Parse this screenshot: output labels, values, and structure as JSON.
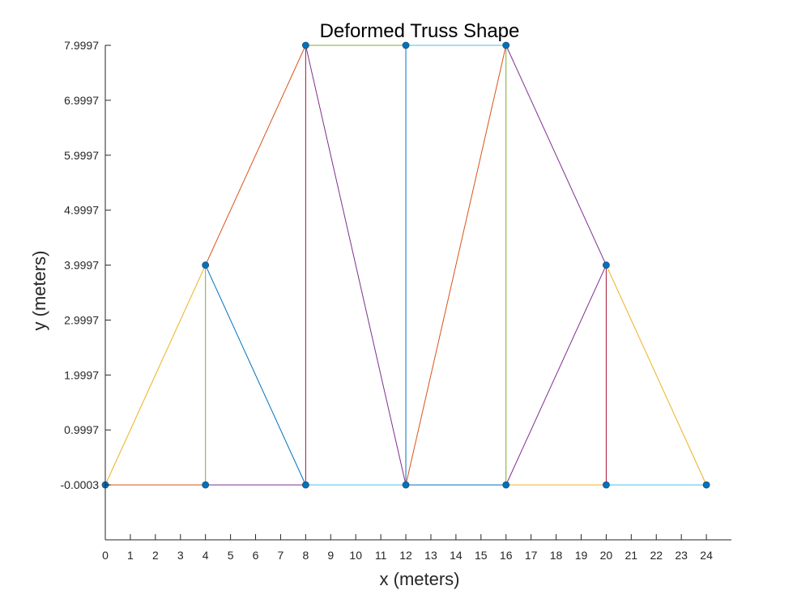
{
  "chart_data": {
    "type": "line",
    "title": "Deformed Truss Shape",
    "xlabel": "x (meters)",
    "ylabel": "y (meters)",
    "xlim": [
      0,
      25
    ],
    "ylim": [
      -1,
      7.9997
    ],
    "xticks": [
      0,
      1,
      2,
      3,
      4,
      5,
      6,
      7,
      8,
      9,
      10,
      11,
      12,
      13,
      14,
      15,
      16,
      17,
      18,
      19,
      20,
      21,
      22,
      23,
      24
    ],
    "xtick_labels": [
      "0",
      "1",
      "2",
      "3",
      "4",
      "5",
      "6",
      "7",
      "8",
      "9",
      "10",
      "11",
      "12",
      "13",
      "14",
      "15",
      "16",
      "17",
      "18",
      "19",
      "20",
      "21",
      "22",
      "23",
      "24"
    ],
    "yticks": [
      -0.0003,
      0.9997,
      1.9997,
      2.9997,
      3.9997,
      4.9997,
      5.9997,
      6.9997,
      7.9997
    ],
    "ytick_labels": [
      "-0.0003",
      "0.9997",
      "1.9997",
      "2.9997",
      "3.9997",
      "4.9997",
      "5.9997",
      "6.9997",
      "7.9997"
    ],
    "grid": false,
    "legend": "none",
    "node_color": "#0072BD",
    "nodes": [
      {
        "x": 0,
        "y": -0.0003
      },
      {
        "x": 4,
        "y": -0.0003
      },
      {
        "x": 8,
        "y": -0.0003
      },
      {
        "x": 12,
        "y": -0.0003
      },
      {
        "x": 16,
        "y": -0.0003
      },
      {
        "x": 20,
        "y": -0.0003
      },
      {
        "x": 24,
        "y": -0.0003
      },
      {
        "x": 4,
        "y": 3.9997
      },
      {
        "x": 8,
        "y": 7.9997
      },
      {
        "x": 12,
        "y": 7.9997
      },
      {
        "x": 16,
        "y": 7.9997
      },
      {
        "x": 20,
        "y": 3.9997
      }
    ],
    "members": [
      {
        "x": [
          0,
          4
        ],
        "y": [
          -0.0003,
          -0.0003
        ],
        "color": "#D95319"
      },
      {
        "x": [
          4,
          8
        ],
        "y": [
          -0.0003,
          -0.0003
        ],
        "color": "#7E2F8E"
      },
      {
        "x": [
          8,
          12
        ],
        "y": [
          -0.0003,
          -0.0003
        ],
        "color": "#4DBEEE"
      },
      {
        "x": [
          12,
          16
        ],
        "y": [
          -0.0003,
          -0.0003
        ],
        "color": "#0072BD"
      },
      {
        "x": [
          16,
          20
        ],
        "y": [
          -0.0003,
          -0.0003
        ],
        "color": "#EDB120"
      },
      {
        "x": [
          20,
          24
        ],
        "y": [
          -0.0003,
          -0.0003
        ],
        "color": "#4DBEEE"
      },
      {
        "x": [
          0,
          4
        ],
        "y": [
          -0.0003,
          3.9997
        ],
        "color": "#EDB120"
      },
      {
        "x": [
          4,
          4
        ],
        "y": [
          -0.0003,
          3.9997
        ],
        "color": "#77AC30"
      },
      {
        "x": [
          4,
          8
        ],
        "y": [
          3.9997,
          -0.0003
        ],
        "color": "#0072BD"
      },
      {
        "x": [
          4,
          8
        ],
        "y": [
          3.9997,
          7.9997
        ],
        "color": "#D95319"
      },
      {
        "x": [
          8,
          8
        ],
        "y": [
          -0.0003,
          7.9997
        ],
        "color": "#A2142F"
      },
      {
        "x": [
          8,
          12
        ],
        "y": [
          7.9997,
          -0.0003
        ],
        "color": "#7E2F8E"
      },
      {
        "x": [
          8,
          12
        ],
        "y": [
          7.9997,
          7.9997
        ],
        "color": "#77AC30"
      },
      {
        "x": [
          12,
          12
        ],
        "y": [
          -0.0003,
          7.9997
        ],
        "color": "#0072BD"
      },
      {
        "x": [
          12,
          16
        ],
        "y": [
          7.9997,
          7.9997
        ],
        "color": "#4DBEEE"
      },
      {
        "x": [
          12,
          16
        ],
        "y": [
          -0.0003,
          7.9997
        ],
        "color": "#D95319"
      },
      {
        "x": [
          16,
          16
        ],
        "y": [
          -0.0003,
          7.9997
        ],
        "color": "#77AC30"
      },
      {
        "x": [
          16,
          20
        ],
        "y": [
          7.9997,
          3.9997
        ],
        "color": "#7E2F8E"
      },
      {
        "x": [
          16,
          20
        ],
        "y": [
          -0.0003,
          3.9997
        ],
        "color": "#7E2F8E"
      },
      {
        "x": [
          20,
          20
        ],
        "y": [
          -0.0003,
          3.9997
        ],
        "color": "#A2142F"
      },
      {
        "x": [
          20,
          24
        ],
        "y": [
          3.9997,
          -0.0003
        ],
        "color": "#EDB120"
      }
    ]
  }
}
